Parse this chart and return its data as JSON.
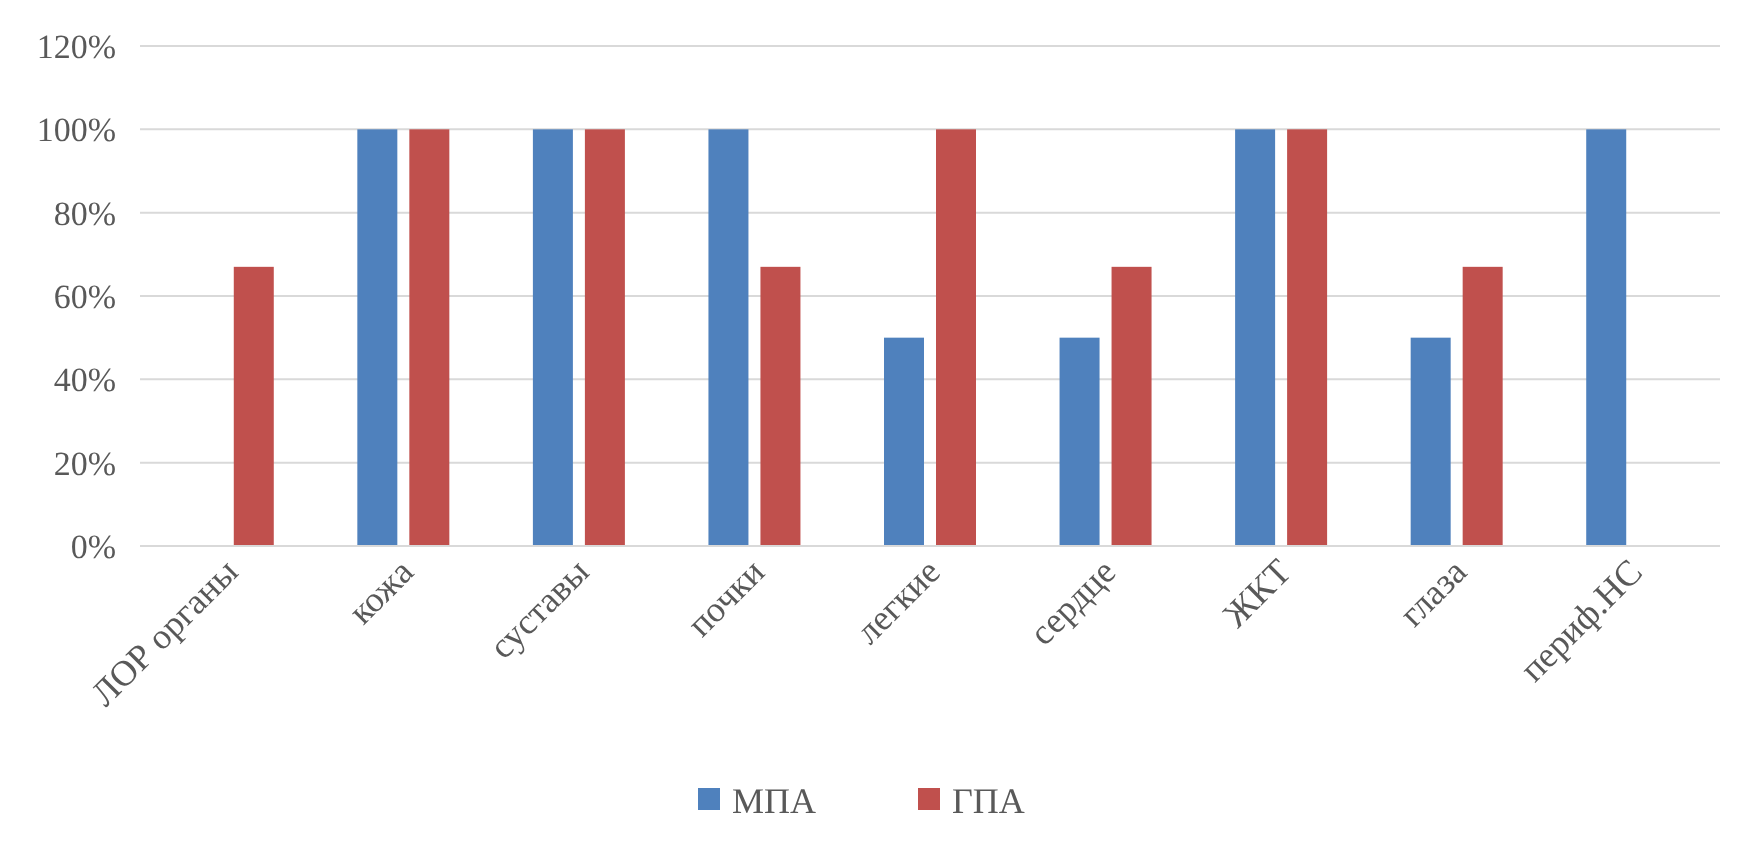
{
  "chart_data": {
    "type": "bar",
    "categories": [
      "ЛОР органы",
      "кожа",
      "суставы",
      "почки",
      "легкие",
      "сердце",
      "ЖКТ",
      "глаза",
      "периф.НС"
    ],
    "series": [
      {
        "name": "МПА",
        "color": "#4f81bd",
        "values": [
          0,
          100,
          100,
          100,
          50,
          50,
          100,
          50,
          100
        ]
      },
      {
        "name": "ГПА",
        "color": "#c0504d",
        "values": [
          67,
          100,
          100,
          67,
          100,
          67,
          100,
          67,
          0
        ]
      }
    ],
    "ylim": [
      0,
      120
    ],
    "yticks": [
      {
        "value": 0,
        "label": "0%"
      },
      {
        "value": 20,
        "label": "20%"
      },
      {
        "value": 40,
        "label": "40%"
      },
      {
        "value": 60,
        "label": "60%"
      },
      {
        "value": 80,
        "label": "80%"
      },
      {
        "value": 100,
        "label": "100%"
      },
      {
        "value": 120,
        "label": "120%"
      }
    ],
    "grid": "y",
    "legend": "bottom"
  }
}
